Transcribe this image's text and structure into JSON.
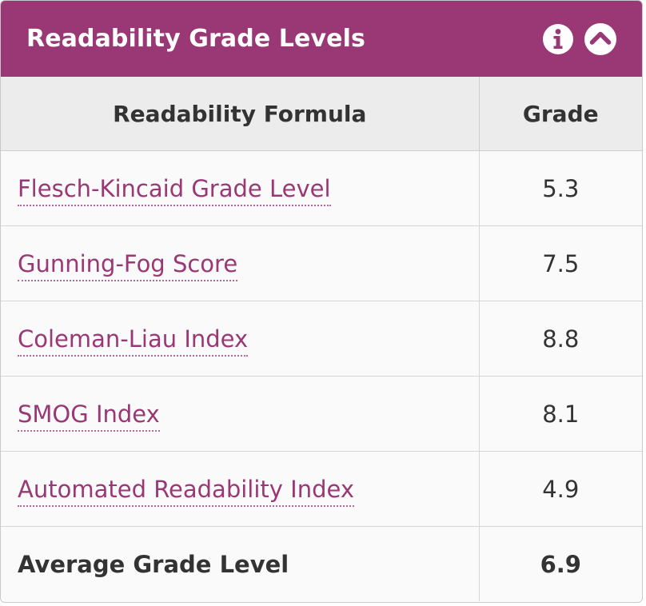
{
  "panel": {
    "title": "Readability Grade Levels",
    "accent_color": "#993875",
    "info_icon": "info-circle-icon",
    "collapse_icon": "chevron-up-circle-icon"
  },
  "table": {
    "headers": [
      "Readability Formula",
      "Grade"
    ],
    "rows": [
      {
        "formula": "Flesch-Kincaid Grade Level",
        "grade": "5.3"
      },
      {
        "formula": "Gunning-Fog Score",
        "grade": "7.5"
      },
      {
        "formula": "Coleman-Liau Index",
        "grade": "8.8"
      },
      {
        "formula": "SMOG Index",
        "grade": "8.1"
      },
      {
        "formula": "Automated Readability Index",
        "grade": "4.9"
      }
    ],
    "average": {
      "label": "Average Grade Level",
      "grade": "6.9"
    }
  }
}
